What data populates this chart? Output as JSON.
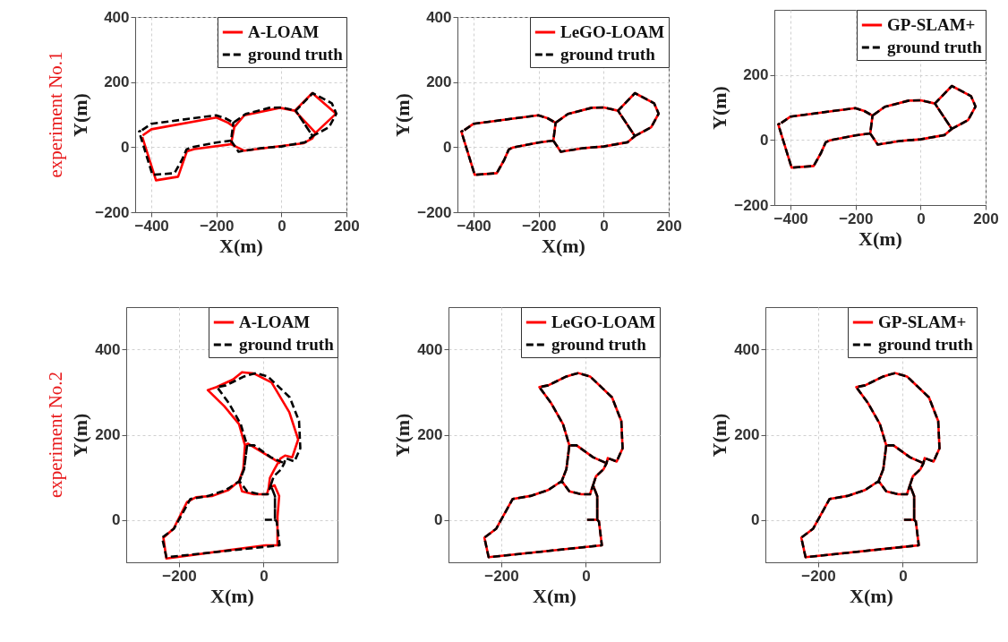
{
  "chart_data": [
    {
      "type": "line",
      "xlabel": "X(m)",
      "ylabel": "Y(m)",
      "annotations": [
        "experiment No.1"
      ],
      "xlim": [
        -450,
        200
      ],
      "ylim": [
        -200,
        400
      ],
      "xticks": [
        -400,
        -200,
        0,
        200
      ],
      "yticks": [
        -200,
        0,
        200,
        400
      ],
      "grid": true,
      "legend": "top right",
      "series": [
        {
          "name": "A-LOAM",
          "color": "#ff0000",
          "line_style": "solid",
          "x": [
            -427,
            -400,
            -200,
            -164,
            -145,
            -114,
            -5,
            41,
            95,
            168,
            105,
            41,
            105,
            95,
            68,
            -5,
            -114,
            -155,
            -145,
            -155,
            -268,
            -291,
            -318,
            -386,
            -428
          ],
          "values": [
            36,
            55,
            91,
            75,
            62,
            98,
            121,
            112,
            166,
            103,
            44,
            112,
            44,
            27,
            12,
            3,
            -11,
            9,
            62,
            9,
            -6,
            -13,
            -91,
            -102,
            31
          ]
        },
        {
          "name": "ground truth",
          "color": "#000000",
          "line_style": "dashed",
          "x": [
            -429,
            -400,
            -201,
            -173,
            -148,
            -110,
            -37,
            0,
            44,
            96,
            155,
            169,
            146,
            96,
            44,
            96,
            73,
            0,
            -64,
            -132,
            -155,
            -148,
            -155,
            -201,
            -279,
            -292,
            -306,
            -329,
            -397,
            -438,
            -432
          ],
          "values": [
            52,
            72,
            98,
            89,
            75,
            102,
            121,
            122,
            112,
            166,
            135,
            103,
            61,
            34,
            112,
            34,
            15,
            2,
            -3,
            -14,
            20,
            75,
            20,
            14,
            -1,
            -7,
            -39,
            -80,
            -85,
            48,
            51
          ]
        }
      ]
    },
    {
      "type": "line",
      "xlabel": "X(m)",
      "ylabel": "Y(m)",
      "xlim": [
        -450,
        200
      ],
      "ylim": [
        -200,
        400
      ],
      "xticks": [
        -400,
        -200,
        0,
        200
      ],
      "yticks": [
        -200,
        0,
        200,
        400
      ],
      "grid": true,
      "legend": "top right",
      "series": [
        {
          "name": "LeGO-LOAM",
          "color": "#ff0000",
          "line_style": "solid",
          "x": [
            -429,
            -400,
            -201,
            -173,
            -148,
            -110,
            -37,
            0,
            44,
            96,
            155,
            169,
            146,
            96,
            44,
            96,
            73,
            0,
            -64,
            -132,
            -155,
            -148,
            -155,
            -201,
            -279,
            -292,
            -306,
            -329,
            -397,
            -438,
            -432
          ],
          "values": [
            52,
            72,
            98,
            89,
            75,
            102,
            121,
            122,
            112,
            166,
            135,
            103,
            61,
            34,
            112,
            34,
            15,
            2,
            -3,
            -14,
            20,
            75,
            20,
            14,
            -1,
            -7,
            -39,
            -80,
            -85,
            48,
            51
          ]
        },
        {
          "name": "ground truth",
          "color": "#000000",
          "line_style": "dashed",
          "x": [
            -429,
            -400,
            -201,
            -173,
            -148,
            -110,
            -37,
            0,
            44,
            96,
            155,
            169,
            146,
            96,
            44,
            96,
            73,
            0,
            -64,
            -132,
            -155,
            -148,
            -155,
            -201,
            -279,
            -292,
            -306,
            -329,
            -397,
            -438,
            -432
          ],
          "values": [
            52,
            72,
            98,
            89,
            75,
            102,
            121,
            122,
            112,
            166,
            135,
            103,
            61,
            34,
            112,
            34,
            15,
            2,
            -3,
            -14,
            20,
            75,
            20,
            14,
            -1,
            -7,
            -39,
            -80,
            -85,
            48,
            51
          ]
        }
      ]
    },
    {
      "type": "line",
      "xlabel": "X(m)",
      "ylabel": "Y(m)",
      "xlim": [
        -450,
        200
      ],
      "ylim": [
        -200,
        400
      ],
      "xticks": [
        -400,
        -200,
        0,
        200
      ],
      "yticks": [
        -200,
        0,
        200
      ],
      "grid": true,
      "legend": "top right",
      "series": [
        {
          "name": "GP-SLAM+",
          "color": "#ff0000",
          "line_style": "solid",
          "x": [
            -429,
            -400,
            -201,
            -173,
            -148,
            -110,
            -37,
            0,
            44,
            96,
            155,
            169,
            146,
            96,
            44,
            96,
            73,
            0,
            -64,
            -132,
            -155,
            -148,
            -155,
            -201,
            -279,
            -292,
            -306,
            -329,
            -397,
            -438,
            -432
          ],
          "values": [
            52,
            72,
            98,
            89,
            75,
            102,
            121,
            122,
            112,
            166,
            135,
            103,
            61,
            34,
            112,
            34,
            15,
            2,
            -3,
            -14,
            20,
            75,
            20,
            14,
            -1,
            -7,
            -39,
            -80,
            -85,
            48,
            51
          ]
        },
        {
          "name": "ground truth",
          "color": "#000000",
          "line_style": "dashed",
          "x": [
            -429,
            -400,
            -201,
            -173,
            -148,
            -110,
            -37,
            0,
            44,
            96,
            155,
            169,
            146,
            96,
            44,
            96,
            73,
            0,
            -64,
            -132,
            -155,
            -148,
            -155,
            -201,
            -279,
            -292,
            -306,
            -329,
            -397,
            -438,
            -432
          ],
          "values": [
            52,
            72,
            98,
            89,
            75,
            102,
            121,
            122,
            112,
            166,
            135,
            103,
            61,
            34,
            112,
            34,
            15,
            2,
            -3,
            -14,
            20,
            75,
            20,
            14,
            -1,
            -7,
            -39,
            -80,
            -85,
            48,
            51
          ]
        }
      ]
    },
    {
      "type": "line",
      "xlabel": "X(m)",
      "ylabel": "Y(m)",
      "annotations": [
        "experiment No.2"
      ],
      "xlim": [
        -325,
        175
      ],
      "ylim": [
        -100,
        500
      ],
      "xticks": [
        -200,
        0
      ],
      "yticks": [
        0,
        200,
        400
      ],
      "grid": true,
      "legend": "top right",
      "series": [
        {
          "name": "A-LOAM",
          "color": "#ff0000",
          "line_style": "solid",
          "x": [
            -230,
            -237,
            -213,
            -181,
            -160,
            -121,
            -83,
            -58,
            -51,
            -23,
            8,
            12,
            26,
            37,
            33,
            33,
            5,
            -230,
            5,
            33,
            33,
            37,
            26,
            12,
            15,
            26,
            40,
            51,
            68,
            82,
            61,
            19,
            -23,
            -51,
            -72,
            -111,
            -132,
            -93,
            -58,
            -44,
            -48,
            -58,
            -48,
            -44,
            -37,
            5,
            40
          ],
          "values": [
            -91,
            -42,
            -21,
            42,
            53,
            56,
            70,
            91,
            67,
            60,
            60,
            74,
            81,
            56,
            7,
            -60,
            -60,
            -91,
            -60,
            -60,
            7,
            56,
            81,
            74,
            98,
            119,
            144,
            151,
            147,
            189,
            253,
            323,
            344,
            347,
            330,
            312,
            305,
            267,
            225,
            175,
            119,
            91,
            119,
            175,
            179,
            154,
            133
          ]
        },
        {
          "name": "ground truth",
          "color": "#000000",
          "line_style": "dashed",
          "x": [
            3,
            27,
            27,
            17,
            10,
            -11,
            -39,
            -57,
            -89,
            -131,
            -173,
            -212,
            -240,
            -230,
            38,
            31,
            27,
            27,
            17,
            24,
            42,
            49,
            52,
            73,
            87,
            84,
            62,
            10,
            -18,
            -46,
            -89,
            -110,
            -82,
            -54,
            -39,
            -46,
            -57,
            -46,
            -39,
            -22,
            17,
            49
          ],
          "values": [
            0,
            0,
            56,
            81,
            60,
            60,
            67,
            91,
            70,
            56,
            49,
            -21,
            -42,
            -88,
            -60,
            -4,
            0,
            56,
            81,
            102,
            119,
            133,
            145,
            137,
            168,
            232,
            288,
            337,
            345,
            337,
            316,
            312,
            274,
            225,
            175,
            119,
            91,
            119,
            175,
            175,
            147,
            133
          ]
        }
      ]
    },
    {
      "type": "line",
      "xlabel": "X(m)",
      "ylabel": "Y(m)",
      "xlim": [
        -325,
        175
      ],
      "ylim": [
        -100,
        500
      ],
      "xticks": [
        -200,
        0
      ],
      "yticks": [
        0,
        200,
        400
      ],
      "grid": true,
      "legend": "top right",
      "series": [
        {
          "name": "LeGO-LOAM",
          "color": "#ff0000",
          "line_style": "solid",
          "x": [
            3,
            27,
            27,
            17,
            10,
            -11,
            -39,
            -57,
            -89,
            -131,
            -173,
            -212,
            -240,
            -230,
            38,
            31,
            27,
            27,
            17,
            24,
            42,
            49,
            52,
            73,
            87,
            84,
            62,
            10,
            -18,
            -46,
            -89,
            -110,
            -82,
            -54,
            -39,
            -46,
            -57,
            -46,
            -39,
            -22,
            17,
            49
          ],
          "values": [
            0,
            0,
            56,
            81,
            60,
            60,
            67,
            91,
            70,
            56,
            49,
            -21,
            -42,
            -88,
            -60,
            -4,
            0,
            56,
            81,
            102,
            119,
            133,
            145,
            137,
            168,
            232,
            288,
            337,
            345,
            337,
            316,
            312,
            274,
            225,
            175,
            119,
            91,
            119,
            175,
            175,
            147,
            133
          ]
        },
        {
          "name": "ground truth",
          "color": "#000000",
          "line_style": "dashed",
          "x": [
            3,
            27,
            27,
            17,
            10,
            -11,
            -39,
            -57,
            -89,
            -131,
            -173,
            -212,
            -240,
            -230,
            38,
            31,
            27,
            27,
            17,
            24,
            42,
            49,
            52,
            73,
            87,
            84,
            62,
            10,
            -18,
            -46,
            -89,
            -110,
            -82,
            -54,
            -39,
            -46,
            -57,
            -46,
            -39,
            -22,
            17,
            49
          ],
          "values": [
            0,
            0,
            56,
            81,
            60,
            60,
            67,
            91,
            70,
            56,
            49,
            -21,
            -42,
            -88,
            -60,
            -4,
            0,
            56,
            81,
            102,
            119,
            133,
            145,
            137,
            168,
            232,
            288,
            337,
            345,
            337,
            316,
            312,
            274,
            225,
            175,
            119,
            91,
            119,
            175,
            175,
            147,
            133
          ]
        }
      ]
    },
    {
      "type": "line",
      "xlabel": "X(m)",
      "ylabel": "Y(m)",
      "xlim": [
        -325,
        175
      ],
      "ylim": [
        -100,
        500
      ],
      "xticks": [
        -200,
        0
      ],
      "yticks": [
        0,
        200,
        400
      ],
      "grid": true,
      "legend": "top right",
      "series": [
        {
          "name": "GP-SLAM+",
          "color": "#ff0000",
          "line_style": "solid",
          "x": [
            3,
            27,
            27,
            17,
            10,
            -11,
            -39,
            -57,
            -89,
            -131,
            -173,
            -212,
            -240,
            -230,
            38,
            31,
            27,
            27,
            17,
            24,
            42,
            49,
            52,
            73,
            87,
            84,
            62,
            10,
            -18,
            -46,
            -89,
            -110,
            -82,
            -54,
            -39,
            -46,
            -57,
            -46,
            -39,
            -22,
            17,
            49
          ],
          "values": [
            0,
            0,
            56,
            81,
            60,
            60,
            67,
            91,
            70,
            56,
            49,
            -21,
            -42,
            -88,
            -60,
            -4,
            0,
            56,
            81,
            102,
            119,
            133,
            145,
            137,
            168,
            232,
            288,
            337,
            345,
            337,
            316,
            312,
            274,
            225,
            175,
            119,
            91,
            119,
            175,
            175,
            147,
            133
          ]
        },
        {
          "name": "ground truth",
          "color": "#000000",
          "line_style": "dashed",
          "x": [
            3,
            27,
            27,
            17,
            10,
            -11,
            -39,
            -57,
            -89,
            -131,
            -173,
            -212,
            -240,
            -230,
            38,
            31,
            27,
            27,
            17,
            24,
            42,
            49,
            52,
            73,
            87,
            84,
            62,
            10,
            -18,
            -46,
            -89,
            -110,
            -82,
            -54,
            -39,
            -46,
            -57,
            -46,
            -39,
            -22,
            17,
            49
          ],
          "values": [
            0,
            0,
            56,
            81,
            60,
            60,
            67,
            91,
            70,
            56,
            49,
            -21,
            -42,
            -88,
            -60,
            -4,
            0,
            56,
            81,
            102,
            119,
            133,
            145,
            137,
            168,
            232,
            288,
            337,
            345,
            337,
            316,
            312,
            274,
            225,
            175,
            119,
            91,
            119,
            175,
            175,
            147,
            133
          ]
        }
      ]
    }
  ]
}
